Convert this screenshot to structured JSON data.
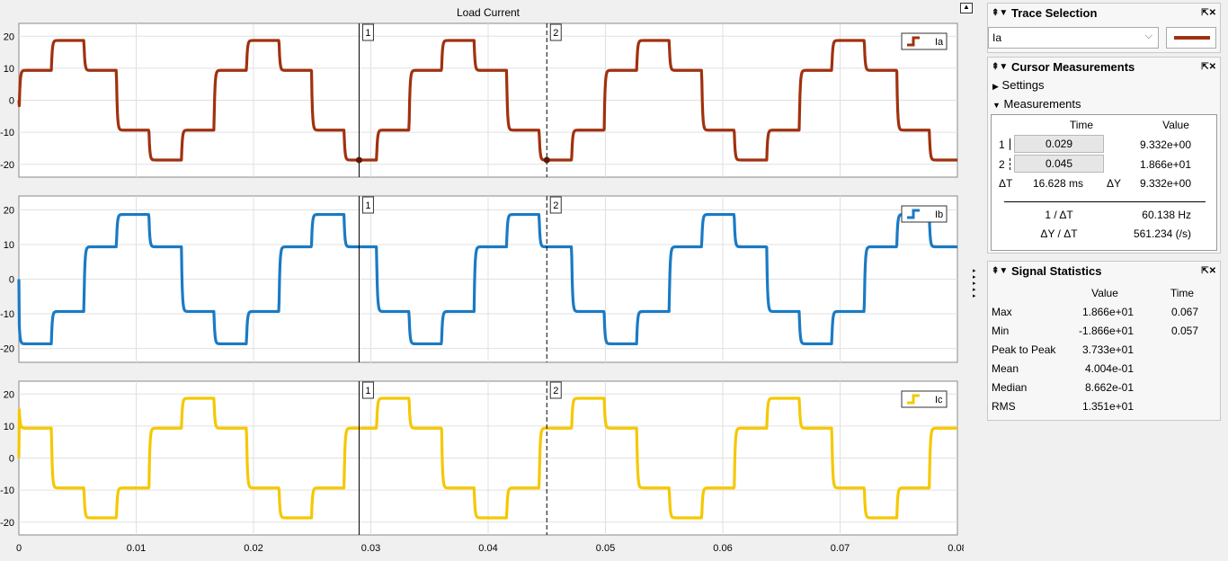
{
  "title": "Load Current",
  "chart_data": {
    "type": "line",
    "title": "Load Current",
    "xlim": [
      0,
      0.08
    ],
    "x_ticks": [
      "0",
      "0.01",
      "0.02",
      "0.03",
      "0.04",
      "0.05",
      "0.06",
      "0.07",
      "0.08"
    ],
    "y_ticks": [
      "20",
      "10",
      "0",
      "-10",
      "-20"
    ],
    "ylim": [
      -24,
      24
    ],
    "period_s": 0.01663,
    "step_levels": [
      9.33,
      18.66,
      9.33,
      -9.33,
      -18.66,
      -9.33
    ],
    "grid": true,
    "series": [
      {
        "name": "Ia",
        "color": "#a0310f",
        "phase_offset_s": 0.0,
        "legend": "top-right"
      },
      {
        "name": "Ib",
        "color": "#1a7ac4",
        "phase_offset_s": 0.00554,
        "legend": "top-right"
      },
      {
        "name": "Ic",
        "color": "#f5c800",
        "phase_offset_s": 0.01109,
        "legend": "top-right"
      }
    ],
    "cursors": [
      {
        "label": "1",
        "time": 0.029,
        "style": "solid"
      },
      {
        "label": "2",
        "time": 0.045,
        "style": "dashed"
      }
    ]
  },
  "trace_selection": {
    "title": "Trace Selection",
    "selected": "Ia",
    "color": "#a0310f"
  },
  "cursor_measurements": {
    "title": "Cursor Measurements",
    "settings_label": "Settings",
    "measurements_label": "Measurements",
    "col_time": "Time",
    "col_value": "Value",
    "cursor1_label": "1",
    "cursor1_time": "0.029",
    "cursor1_value": "9.332e+00",
    "cursor2_label": "2",
    "cursor2_time": "0.045",
    "cursor2_value": "1.866e+01",
    "dt_label": "ΔT",
    "dt_value": "16.628 ms",
    "dy_label": "ΔY",
    "dy_value": "9.332e+00",
    "inv_dt_label": "1 / ΔT",
    "inv_dt_value": "60.138 Hz",
    "dy_dt_label": "ΔY / ΔT",
    "dy_dt_value": "561.234 (/s)"
  },
  "signal_statistics": {
    "title": "Signal Statistics",
    "col_value": "Value",
    "col_time": "Time",
    "rows": [
      {
        "label": "Max",
        "value": "1.866e+01",
        "time": "0.067"
      },
      {
        "label": "Min",
        "value": "-1.866e+01",
        "time": "0.057"
      },
      {
        "label": "Peak to Peak",
        "value": "3.733e+01",
        "time": ""
      },
      {
        "label": "Mean",
        "value": "4.004e-01",
        "time": ""
      },
      {
        "label": "Median",
        "value": "8.662e-01",
        "time": ""
      },
      {
        "label": "RMS",
        "value": "1.351e+01",
        "time": ""
      }
    ]
  }
}
